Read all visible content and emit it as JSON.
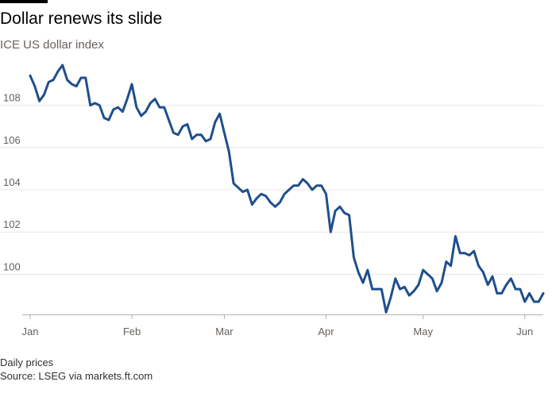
{
  "title": "Dollar renews its slide",
  "subtitle": "ICE US dollar index",
  "footer": {
    "note": "Daily prices",
    "source": "Source: LSEG via markets.ft.com"
  },
  "colors": {
    "line": "#1e4f8c",
    "gridline": "#e8e6e4",
    "axis": "#b3b0ad",
    "accent_bar": "#000000"
  },
  "chart_data": {
    "type": "line",
    "title": "Dollar renews its slide",
    "subtitle": "ICE US dollar index",
    "xlabel": "",
    "ylabel": "",
    "ylim": [
      98.1,
      109.6
    ],
    "xlim": [
      0,
      111
    ],
    "grid": true,
    "x_ticks": [
      {
        "x": 0,
        "label": "Jan"
      },
      {
        "x": 22,
        "label": "Feb"
      },
      {
        "x": 42,
        "label": "Mar"
      },
      {
        "x": 64,
        "label": "Apr"
      },
      {
        "x": 85,
        "label": "May"
      },
      {
        "x": 107,
        "label": "Jun"
      }
    ],
    "y_ticks": [
      100,
      102,
      104,
      106,
      108
    ],
    "series": [
      {
        "name": "ICE US dollar index",
        "x": [
          0,
          1,
          2,
          3,
          4,
          5,
          6,
          7,
          8,
          9,
          10,
          11,
          12,
          13,
          14,
          15,
          16,
          17,
          18,
          19,
          20,
          21,
          22,
          23,
          24,
          25,
          26,
          27,
          28,
          29,
          30,
          31,
          32,
          33,
          34,
          35,
          36,
          37,
          38,
          39,
          40,
          41,
          42,
          43,
          44,
          45,
          46,
          47,
          48,
          49,
          50,
          51,
          52,
          53,
          54,
          55,
          56,
          57,
          58,
          59,
          60,
          61,
          62,
          63,
          64,
          65,
          66,
          67,
          68,
          69,
          70,
          71,
          72,
          73,
          74,
          75,
          76,
          77,
          78,
          79,
          80,
          81,
          82,
          83,
          84,
          85,
          86,
          87,
          88,
          89,
          90,
          91,
          92,
          93,
          94,
          95,
          96,
          97,
          98,
          99,
          100,
          101,
          102,
          103,
          104,
          105,
          106,
          107,
          108,
          109,
          110,
          111
        ],
        "values": [
          109.4,
          108.9,
          108.2,
          108.5,
          109.1,
          109.2,
          109.6,
          109.9,
          109.2,
          109.0,
          108.9,
          109.3,
          109.3,
          108.0,
          108.1,
          108.0,
          107.4,
          107.3,
          107.8,
          107.9,
          107.7,
          108.3,
          109.0,
          107.9,
          107.5,
          107.7,
          108.1,
          108.3,
          107.9,
          107.9,
          107.3,
          106.7,
          106.6,
          107.0,
          107.1,
          106.4,
          106.6,
          106.6,
          106.3,
          106.4,
          107.2,
          107.6,
          106.7,
          105.8,
          104.3,
          104.1,
          103.9,
          104.0,
          103.3,
          103.6,
          103.8,
          103.7,
          103.4,
          103.2,
          103.4,
          103.8,
          104.0,
          104.2,
          104.2,
          104.5,
          104.3,
          104.0,
          104.2,
          104.2,
          103.8,
          102.0,
          103.0,
          103.2,
          102.9,
          102.8,
          100.8,
          100.1,
          99.6,
          100.2,
          99.3,
          99.3,
          99.3,
          98.2,
          98.9,
          99.8,
          99.3,
          99.4,
          99.0,
          99.2,
          99.5,
          100.2,
          100.0,
          99.8,
          99.2,
          99.6,
          100.6,
          100.4,
          101.8,
          101.0,
          101.0,
          100.9,
          101.1,
          100.4,
          100.1,
          99.5,
          99.9,
          99.1,
          99.1,
          99.5,
          99.8,
          99.3,
          99.3,
          98.7,
          99.1,
          98.7,
          98.7,
          99.1
        ]
      }
    ]
  }
}
